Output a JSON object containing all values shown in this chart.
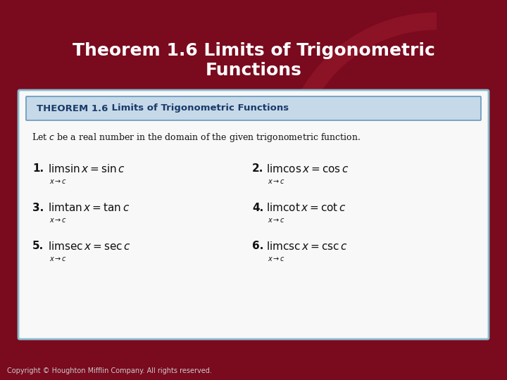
{
  "title_line1": "Theorem 1.6 Limits of Trigonometric",
  "title_line2": "Functions",
  "title_color": "#ffffff",
  "bg_color": "#7a0a1e",
  "white_box_color": "#f8f8f8",
  "theorem_header_bg": "#c5d9e8",
  "theorem_header_text_bold": "THEOREM 1.6",
  "theorem_header_text_rest": "    Limits of Trigonometric Functions",
  "theorem_header_color": "#1a3a6b",
  "intro_text": "Let $c$ be a real number in the domain of the given trigonometric function.",
  "copyright": "Copyright © Houghton Mifflin Company. All rights reserved.",
  "limits_left": [
    {
      "num": "1.",
      "expr": "$\\lim \\sin x = \\sin c$",
      "sub": "$x{\\to}c$"
    },
    {
      "num": "3.",
      "expr": "$\\lim \\tan x = \\tan c$",
      "sub": "$x{\\to}c$"
    },
    {
      "num": "5.",
      "expr": "$\\lim \\sec x = \\sec c$",
      "sub": "$x{\\to}c$"
    }
  ],
  "limits_right": [
    {
      "num": "2.",
      "expr": "$\\lim \\cos x = \\cos c$",
      "sub": "$x{\\to}c$"
    },
    {
      "num": "4.",
      "expr": "$\\lim \\cot x = \\cot c$",
      "sub": "$x{\\to}c$"
    },
    {
      "num": "6.",
      "expr": "$\\lim \\csc x = \\csc c$",
      "sub": "$x{\\to}c$"
    }
  ],
  "arc_color": "#9b1a2e",
  "box_edge_color": "#88bbcc",
  "header_edge_color": "#6699bb"
}
